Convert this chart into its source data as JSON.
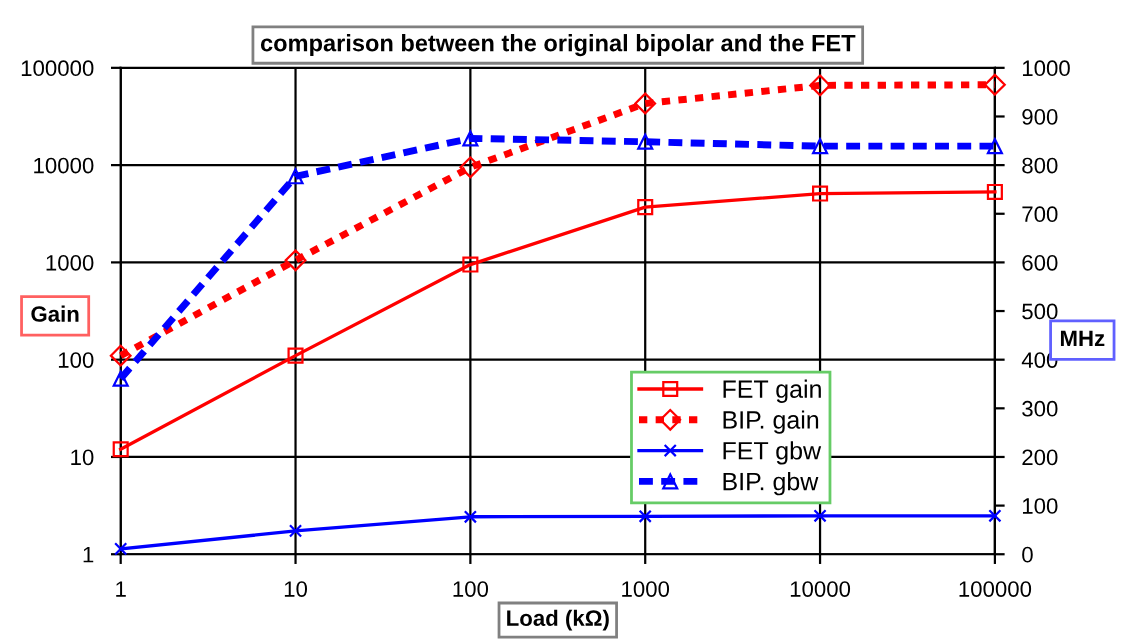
{
  "chart_data": {
    "type": "line",
    "title": "comparison between the original bipolar and the FET",
    "xlabel": "Load (kΩ)",
    "ylabel": "Gain",
    "y2label": "MHz",
    "x": [
      1,
      10,
      100,
      1000,
      10000,
      100000
    ],
    "log": "xy",
    "xlim": [
      1,
      100000
    ],
    "xticks": [
      1,
      10,
      100,
      1000,
      10000,
      100000
    ],
    "ylim": [
      1,
      100000
    ],
    "yticks": [
      1,
      10,
      100,
      1000,
      10000,
      100000
    ],
    "y2lim": [
      0,
      1000
    ],
    "y2ticks": [
      0,
      100,
      200,
      300,
      400,
      500,
      600,
      700,
      800,
      900,
      1000
    ],
    "grid": true,
    "legend": "right",
    "series": [
      {
        "name": "FET gain",
        "color": "#ff0000",
        "marker": "square",
        "line_style": "solid",
        "values": [
          12,
          110,
          950,
          3700,
          5100,
          5300
        ]
      },
      {
        "name": "BIP. gain",
        "color": "#ff0000",
        "marker": "diamond",
        "line_style": "dotted",
        "values": [
          110,
          1050,
          9500,
          43000,
          66000,
          67000
        ]
      },
      {
        "name": "FET gbw",
        "color": "#0000ff",
        "marker": "cross",
        "line_style": "solid",
        "axis": "y2",
        "values": [
          11,
          48,
          77,
          78,
          79,
          79
        ]
      },
      {
        "name": "BIP. gbw",
        "color": "#0000ff",
        "marker": "triangle",
        "line_style": "dashed",
        "axis": "y2",
        "values": [
          361,
          777,
          855,
          848,
          839,
          839
        ]
      }
    ]
  }
}
